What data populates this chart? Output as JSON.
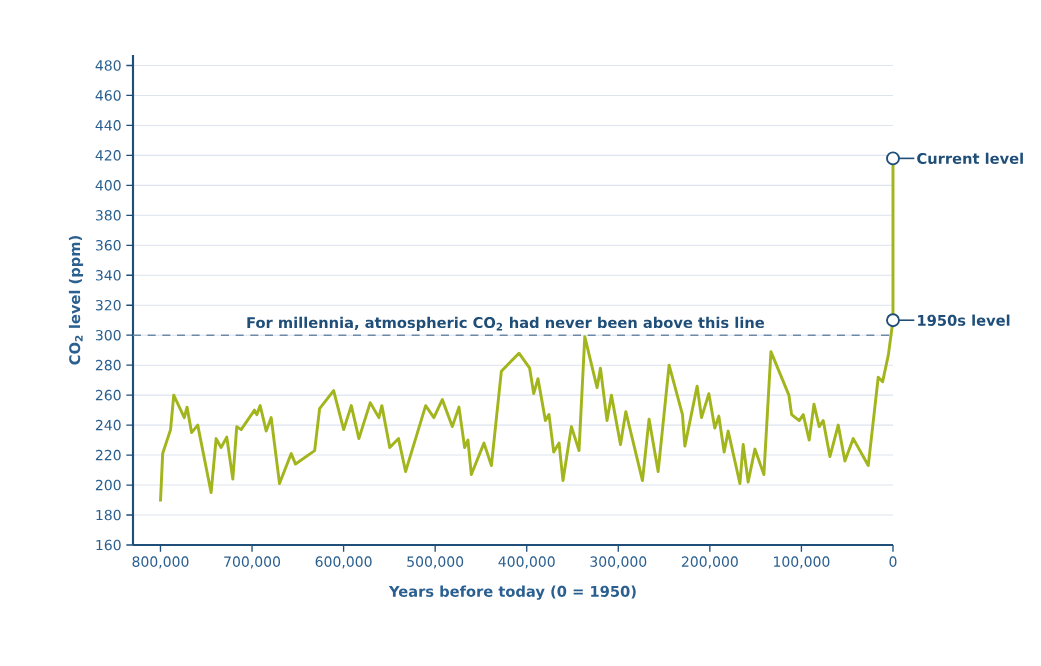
{
  "chart_data": {
    "type": "line",
    "xlabel": "Years before today (0 = 1950)",
    "ylabel": "CO$_{2}$ level (ppm)",
    "x": [
      800000,
      797600,
      789000,
      785500,
      774000,
      771000,
      766000,
      759300,
      744700,
      739200,
      733800,
      727600,
      721000,
      716700,
      711900,
      697300,
      694800,
      691100,
      684500,
      679100,
      670000,
      657200,
      652500,
      631600,
      626200,
      610900,
      599900,
      591600,
      583300,
      570900,
      561500,
      558200,
      549600,
      540000,
      532300,
      510400,
      501400,
      492200,
      481300,
      474000,
      467800,
      464200,
      460500,
      446700,
      438600,
      427700,
      408500,
      396800,
      392400,
      387700,
      379600,
      375700,
      370500,
      364700,
      360400,
      351200,
      342900,
      336600,
      323200,
      319500,
      312300,
      307500,
      297600,
      291800,
      273600,
      266400,
      256500,
      244500,
      229900,
      227300,
      213900,
      209100,
      201100,
      194600,
      190200,
      184400,
      180000,
      167200,
      163600,
      158200,
      150800,
      141000,
      133300,
      113700,
      110700,
      102400,
      98000,
      91500,
      86300,
      80600,
      76200,
      68900,
      59800,
      52500,
      43400,
      27000,
      16100,
      11300,
      5000,
      0,
      0
    ],
    "series": [
      {
        "color": "#a3b51d",
        "values": [
          189,
          221,
          237,
          260,
          245,
          252,
          235,
          240,
          195,
          231,
          225,
          232,
          204,
          239,
          237,
          250,
          247,
          253,
          236,
          245,
          201,
          221,
          214,
          223,
          251,
          263,
          237,
          253,
          231,
          255,
          245,
          253,
          225,
          231,
          209,
          253,
          245,
          257,
          239,
          252,
          225,
          230,
          207,
          228,
          213,
          276,
          288,
          278,
          261,
          271,
          243,
          247,
          222,
          228,
          203,
          239,
          223,
          299,
          265,
          278,
          243,
          260,
          227,
          249,
          203,
          244,
          209,
          280,
          247,
          226,
          266,
          245,
          261,
          238,
          246,
          222,
          236,
          201,
          227,
          202,
          224,
          207,
          289,
          260,
          247,
          243,
          247,
          230,
          254,
          239,
          243,
          219,
          240,
          216,
          231,
          213,
          272,
          269,
          287,
          310,
          418
        ]
      }
    ],
    "xlim": [
      830000,
      0
    ],
    "ylim": [
      160,
      487
    ],
    "xticks": [
      {
        "value": 800000,
        "label": "800,000"
      },
      {
        "value": 700000,
        "label": "700,000"
      },
      {
        "value": 600000,
        "label": "600,000"
      },
      {
        "value": 500000,
        "label": "500,000"
      },
      {
        "value": 400000,
        "label": "400,000"
      },
      {
        "value": 300000,
        "label": "300,000"
      },
      {
        "value": 200000,
        "label": "200,000"
      },
      {
        "value": 100000,
        "label": "100,000"
      },
      0
    ],
    "yticks": [
      160,
      180,
      200,
      220,
      240,
      260,
      280,
      300,
      320,
      340,
      360,
      380,
      400,
      420,
      440,
      460,
      480
    ],
    "grid": "y",
    "marker": "none",
    "line_style": "solid",
    "ref_lines": [
      {
        "axis": "y",
        "value": 300,
        "label": "For millennia, atmospheric CO$_{2}$ had never been above this line",
        "color": "#6f8aa6",
        "line_style": "dashed"
      }
    ],
    "annotations": [
      {
        "text": "Current level",
        "x": 0,
        "y": 418
      },
      {
        "text": "1950s level",
        "x": 0,
        "y": 310
      }
    ]
  }
}
